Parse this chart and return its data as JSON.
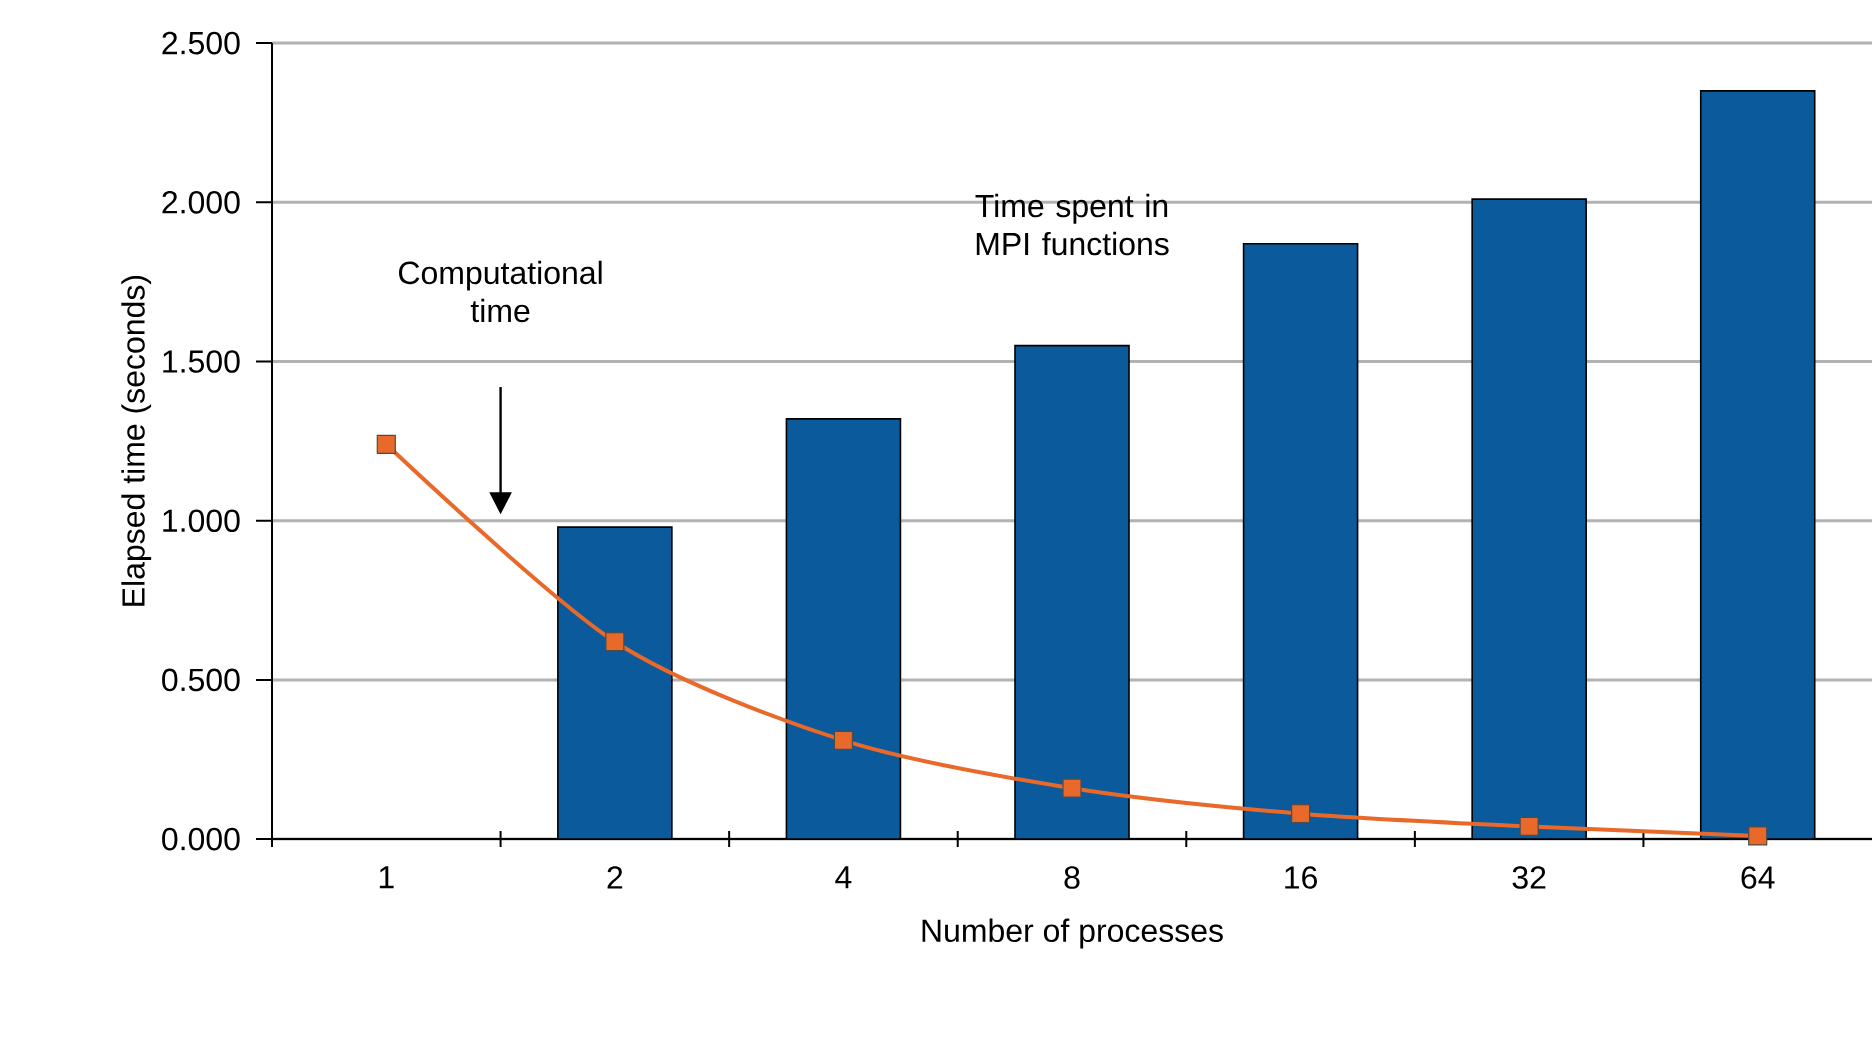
{
  "chart_data": {
    "type": "bar",
    "xlabel": "Number of processes",
    "ylabel": "Elapsed time (seconds)",
    "categories": [
      "1",
      "2",
      "4",
      "8",
      "16",
      "32",
      "64"
    ],
    "series": [
      {
        "type": "bar",
        "color": "#0a5a9c",
        "values": [
          null,
          0.98,
          1.32,
          1.55,
          1.87,
          2.01,
          2.35
        ]
      },
      {
        "type": "line",
        "color": "#e8692a",
        "marker": "square",
        "values": [
          1.24,
          0.62,
          0.31,
          0.16,
          0.08,
          0.04,
          0.01
        ]
      }
    ],
    "ylim": [
      0,
      2.5
    ],
    "yticks": [
      {
        "value": 0,
        "label": "0.000"
      },
      {
        "value": 0.5,
        "label": "0.500"
      },
      {
        "value": 1,
        "label": "1.000"
      },
      {
        "value": 1.5,
        "label": "1.500"
      },
      {
        "value": 2,
        "label": "2.000"
      },
      {
        "value": 2.5,
        "label": "2.500"
      }
    ],
    "grid": "y",
    "annotations": [
      "Computational time",
      "Time spent in MPI functions"
    ]
  }
}
